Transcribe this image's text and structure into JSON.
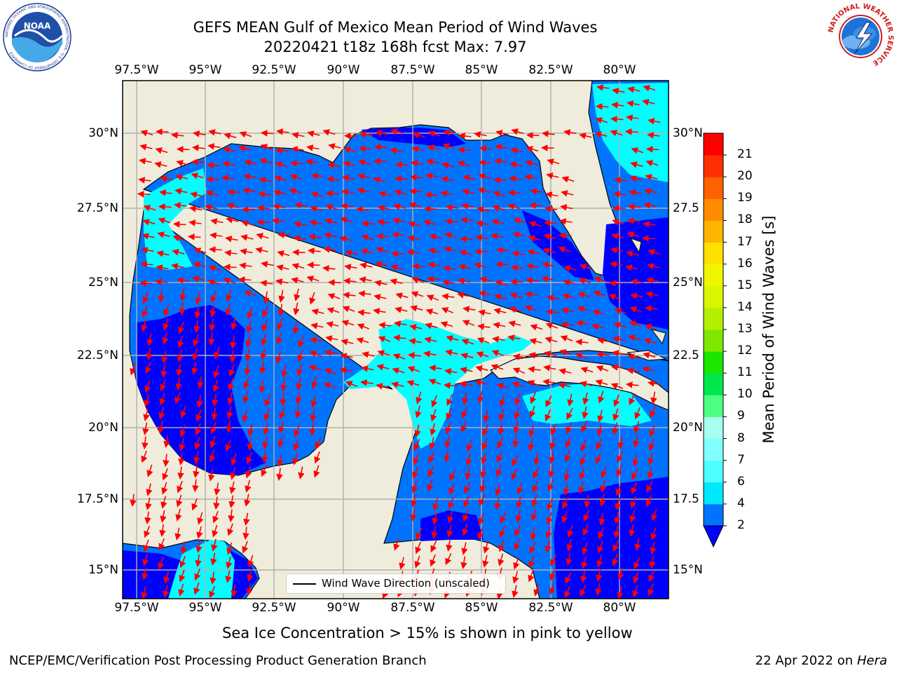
{
  "header": {
    "title_line1": "GEFS MEAN Gulf of Mexico Mean Period of Wind Waves",
    "title_line2": "20220421 t18z 168h fcst   Max: 7.97"
  },
  "logos": {
    "left_agency": "NOAA",
    "left_ring_text": "NATIONAL OCEANIC AND ATMOSPHERIC ADMINISTRATION · U.S. DEPARTMENT OF COMMERCE",
    "right_ring_text": "NATIONAL WEATHER SERVICE"
  },
  "map": {
    "lon_labels": [
      "97.5°W",
      "95°W",
      "92.5°W",
      "90°W",
      "87.5°W",
      "85°W",
      "82.5°W",
      "80°W"
    ],
    "lat_labels_left": [
      "30°N",
      "27.5°N",
      "25°N",
      "22.5°N",
      "20°N",
      "17.5°N",
      "15°N"
    ],
    "lat_labels_right": [
      "30°N",
      "27.5",
      "25°N",
      "22.5",
      "20°N",
      "17.5",
      "15°N"
    ],
    "legend_label": "Wind Wave Direction (unscaled)",
    "colors": {
      "land": "#efecdb",
      "ocean_low": "#0073ff",
      "ocean_calm": "#0000ff",
      "ocean_mid": "#00ffff",
      "arrow": "#ff0000",
      "grid": "#b0b0b0"
    }
  },
  "colorbar": {
    "label": "Mean Period of Wind Waves [s]",
    "ticks": [
      "2",
      "4",
      "6",
      "7",
      "8",
      "9",
      "10",
      "11",
      "12",
      "13",
      "14",
      "15",
      "16",
      "17",
      "18",
      "19",
      "20",
      "21"
    ],
    "colors": [
      "#0073ff",
      "#00e6ff",
      "#4dffff",
      "#80ffff",
      "#a6fff0",
      "#4dff80",
      "#00e64d",
      "#1ae600",
      "#80e600",
      "#b3f000",
      "#d9f500",
      "#f0f500",
      "#ffe000",
      "#ffb400",
      "#ff8c00",
      "#ff6000",
      "#ff3000",
      "#ff0000"
    ],
    "extend_color": "#0000ff"
  },
  "footer": {
    "ice_note": "Sea Ice Concentration > 15% is shown in pink to yellow",
    "credit": "NCEP/EMC/Verification Post Processing Product Generation Branch",
    "date_text": "22 Apr 2022 on ",
    "machine": "Hera"
  }
}
